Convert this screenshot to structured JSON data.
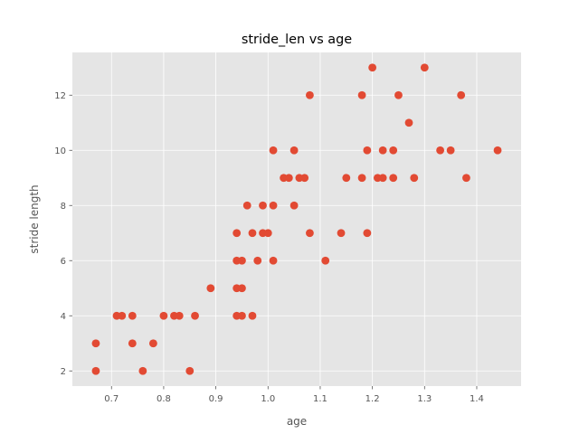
{
  "chart_data": {
    "type": "scatter",
    "title": "stride_len vs age",
    "xlabel": "age",
    "ylabel": "stride length",
    "xlim": [
      0.625,
      1.485
    ],
    "ylim": [
      1.45,
      13.55
    ],
    "xticks": [
      0.7,
      0.8,
      0.9,
      1.0,
      1.1,
      1.2,
      1.3,
      1.4
    ],
    "xtick_labels": [
      "0.7",
      "0.8",
      "0.9",
      "1.0",
      "1.1",
      "1.2",
      "1.3",
      "1.4"
    ],
    "yticks": [
      2,
      4,
      6,
      8,
      10,
      12
    ],
    "ytick_labels": [
      "2",
      "4",
      "6",
      "8",
      "10",
      "12"
    ],
    "grid": true,
    "style": "ggplot",
    "marker_color": "#E24A33",
    "background_color": "#E5E5E5",
    "points": [
      {
        "x": 0.67,
        "y": 2
      },
      {
        "x": 0.67,
        "y": 3
      },
      {
        "x": 0.71,
        "y": 4
      },
      {
        "x": 0.72,
        "y": 4
      },
      {
        "x": 0.74,
        "y": 4
      },
      {
        "x": 0.74,
        "y": 3
      },
      {
        "x": 0.76,
        "y": 2
      },
      {
        "x": 0.78,
        "y": 3
      },
      {
        "x": 0.8,
        "y": 4
      },
      {
        "x": 0.82,
        "y": 4
      },
      {
        "x": 0.83,
        "y": 4
      },
      {
        "x": 0.85,
        "y": 2
      },
      {
        "x": 0.86,
        "y": 4
      },
      {
        "x": 0.89,
        "y": 5
      },
      {
        "x": 0.94,
        "y": 7
      },
      {
        "x": 0.94,
        "y": 6
      },
      {
        "x": 0.94,
        "y": 5
      },
      {
        "x": 0.94,
        "y": 4
      },
      {
        "x": 0.95,
        "y": 6
      },
      {
        "x": 0.95,
        "y": 5
      },
      {
        "x": 0.95,
        "y": 4
      },
      {
        "x": 0.96,
        "y": 8
      },
      {
        "x": 0.97,
        "y": 7
      },
      {
        "x": 0.97,
        "y": 4
      },
      {
        "x": 0.98,
        "y": 6
      },
      {
        "x": 0.99,
        "y": 8
      },
      {
        "x": 0.99,
        "y": 7
      },
      {
        "x": 1.0,
        "y": 7
      },
      {
        "x": 1.01,
        "y": 10
      },
      {
        "x": 1.01,
        "y": 8
      },
      {
        "x": 1.01,
        "y": 6
      },
      {
        "x": 1.03,
        "y": 9
      },
      {
        "x": 1.04,
        "y": 9
      },
      {
        "x": 1.05,
        "y": 10
      },
      {
        "x": 1.05,
        "y": 8
      },
      {
        "x": 1.06,
        "y": 9
      },
      {
        "x": 1.07,
        "y": 9
      },
      {
        "x": 1.08,
        "y": 12
      },
      {
        "x": 1.08,
        "y": 7
      },
      {
        "x": 1.11,
        "y": 6
      },
      {
        "x": 1.14,
        "y": 7
      },
      {
        "x": 1.15,
        "y": 9
      },
      {
        "x": 1.18,
        "y": 12
      },
      {
        "x": 1.18,
        "y": 9
      },
      {
        "x": 1.19,
        "y": 10
      },
      {
        "x": 1.19,
        "y": 7
      },
      {
        "x": 1.2,
        "y": 13
      },
      {
        "x": 1.21,
        "y": 9
      },
      {
        "x": 1.22,
        "y": 10
      },
      {
        "x": 1.22,
        "y": 9
      },
      {
        "x": 1.24,
        "y": 10
      },
      {
        "x": 1.24,
        "y": 9
      },
      {
        "x": 1.25,
        "y": 12
      },
      {
        "x": 1.27,
        "y": 11
      },
      {
        "x": 1.28,
        "y": 9
      },
      {
        "x": 1.3,
        "y": 13
      },
      {
        "x": 1.33,
        "y": 10
      },
      {
        "x": 1.35,
        "y": 10
      },
      {
        "x": 1.37,
        "y": 12
      },
      {
        "x": 1.38,
        "y": 9
      },
      {
        "x": 1.44,
        "y": 10
      }
    ]
  }
}
